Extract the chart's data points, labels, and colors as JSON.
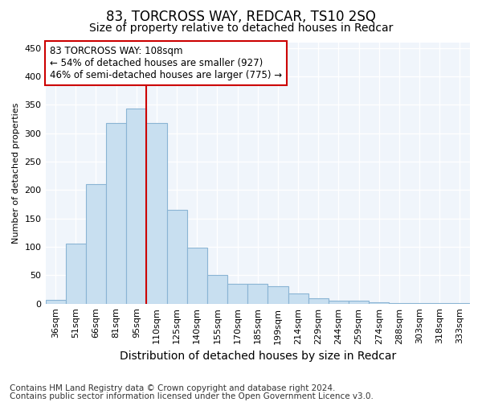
{
  "title": "83, TORCROSS WAY, REDCAR, TS10 2SQ",
  "subtitle": "Size of property relative to detached houses in Redcar",
  "xlabel": "Distribution of detached houses by size in Redcar",
  "ylabel": "Number of detached properties",
  "categories": [
    "36sqm",
    "51sqm",
    "66sqm",
    "81sqm",
    "95sqm",
    "110sqm",
    "125sqm",
    "140sqm",
    "155sqm",
    "170sqm",
    "185sqm",
    "199sqm",
    "214sqm",
    "229sqm",
    "244sqm",
    "259sqm",
    "274sqm",
    "288sqm",
    "303sqm",
    "318sqm",
    "333sqm"
  ],
  "values": [
    6,
    106,
    210,
    318,
    344,
    318,
    165,
    99,
    50,
    35,
    35,
    30,
    18,
    9,
    5,
    5,
    2,
    1,
    1,
    1,
    1
  ],
  "bar_color": "#c8dff0",
  "bar_edge_color": "#8ab4d4",
  "vline_color": "#cc0000",
  "vline_x_idx": 5,
  "annotation_text": "83 TORCROSS WAY: 108sqm\n← 54% of detached houses are smaller (927)\n46% of semi-detached houses are larger (775) →",
  "annotation_box_facecolor": "#ffffff",
  "annotation_box_edgecolor": "#cc0000",
  "ylim": [
    0,
    460
  ],
  "yticks": [
    0,
    50,
    100,
    150,
    200,
    250,
    300,
    350,
    400,
    450
  ],
  "footer_line1": "Contains HM Land Registry data © Crown copyright and database right 2024.",
  "footer_line2": "Contains public sector information licensed under the Open Government Licence v3.0.",
  "bg_color": "#ffffff",
  "plot_bg_color": "#f0f5fb",
  "grid_color": "#ffffff",
  "title_fontsize": 12,
  "subtitle_fontsize": 10,
  "xlabel_fontsize": 10,
  "ylabel_fontsize": 8,
  "tick_fontsize": 8,
  "annotation_fontsize": 8.5,
  "footer_fontsize": 7.5
}
